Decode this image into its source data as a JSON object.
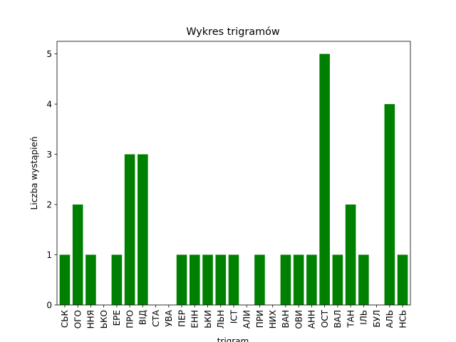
{
  "chart_data": {
    "type": "bar",
    "title": "Wykres trigramów",
    "xlabel": "trigram",
    "ylabel": "Liczba wystąpień",
    "ylim": [
      0,
      5.25
    ],
    "yticks": [
      0,
      1,
      2,
      3,
      4,
      5
    ],
    "grid": false,
    "bar_color": "#008000",
    "categories": [
      "СЬК",
      "ОГО",
      "ННЯ",
      "ЬКО",
      "ЕРЕ",
      "ПРО",
      "ВІД",
      "СТА",
      "УВА",
      "ПЕР",
      "ЕНН",
      "ЬКИ",
      "ЛЬН",
      "ІСТ",
      "АЛИ",
      "ПРИ",
      "НИХ",
      "ВАН",
      "ОВИ",
      "АНН",
      "ОСТ",
      "ВАЛ",
      "ТАН",
      "ІЛЬ",
      "БУЛ",
      "АЛЬ",
      "НСЬ"
    ],
    "values": [
      1,
      2,
      1,
      0,
      1,
      3,
      3,
      0,
      0,
      1,
      1,
      1,
      1,
      1,
      0,
      1,
      0,
      1,
      1,
      1,
      5,
      1,
      2,
      1,
      0,
      4,
      1
    ]
  }
}
